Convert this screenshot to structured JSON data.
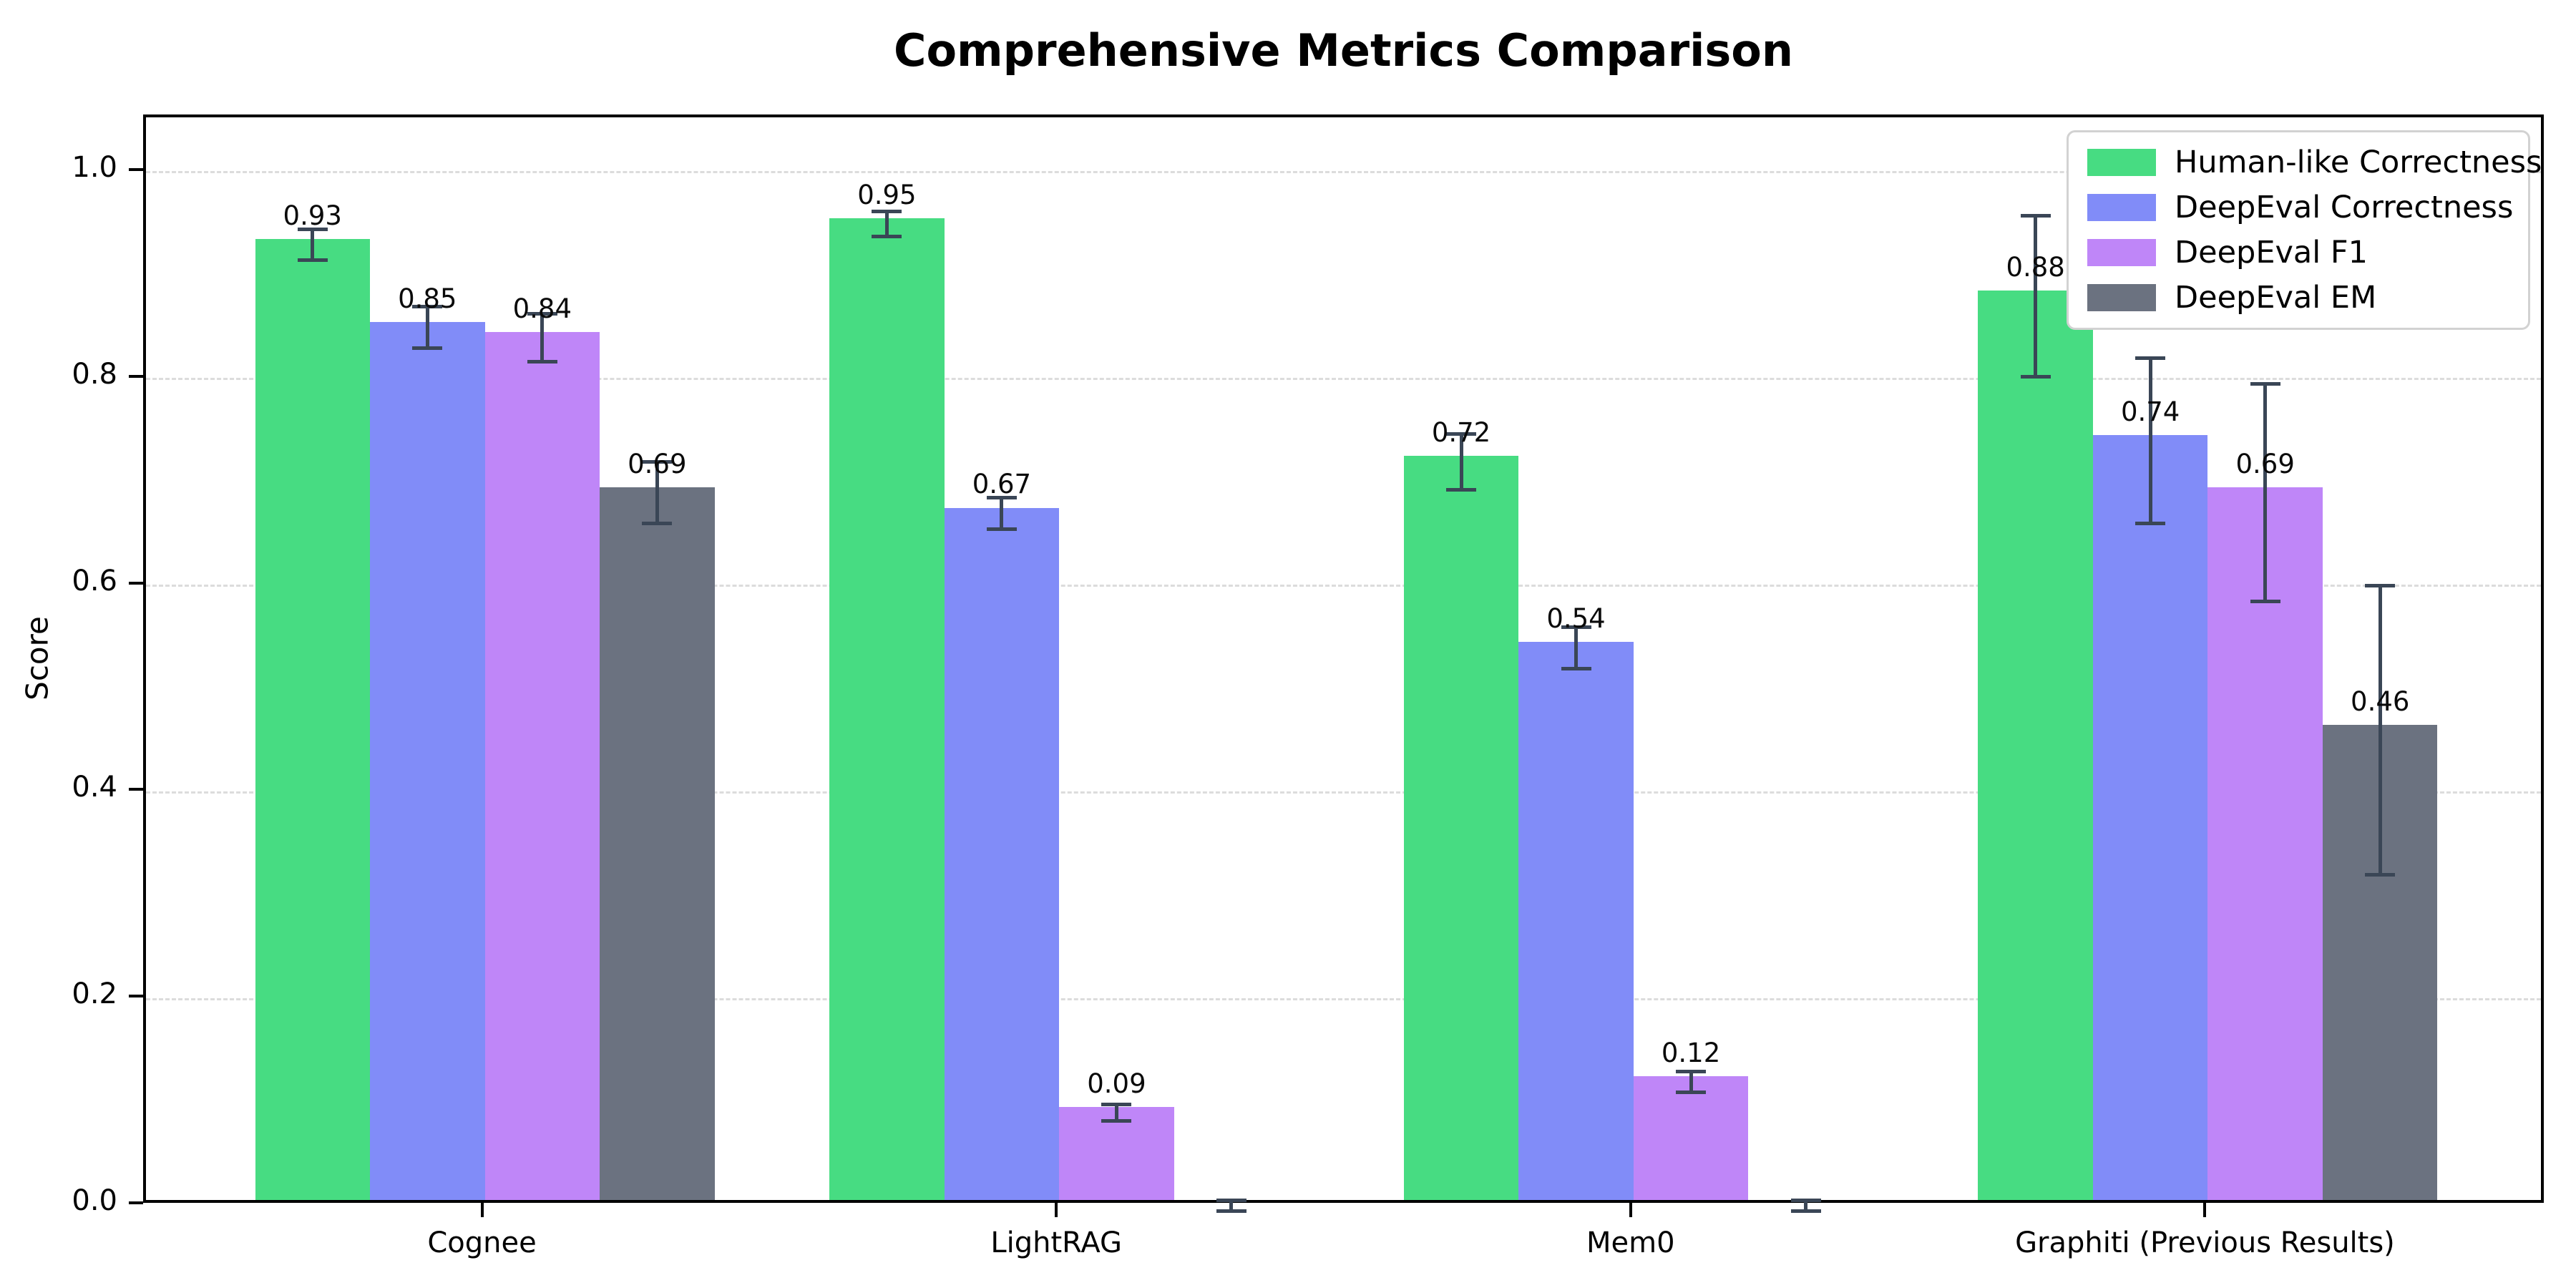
{
  "title": "Comprehensive Metrics Comparison",
  "chart_data": {
    "type": "bar",
    "title": "Comprehensive Metrics Comparison",
    "xlabel": "",
    "ylabel": "Score",
    "ylim": [
      0,
      1.05
    ],
    "yticks": [
      {
        "value": 0.0,
        "label": "0.0"
      },
      {
        "value": 0.2,
        "label": "0.2"
      },
      {
        "value": 0.4,
        "label": "0.4"
      },
      {
        "value": 0.6,
        "label": "0.6"
      },
      {
        "value": 0.8,
        "label": "0.8"
      },
      {
        "value": 1.0,
        "label": "1.0"
      }
    ],
    "grid": "horizontal-dashed",
    "grid_color": "#dcdcdc",
    "legend_position": "upper-right",
    "legend_border_color": "#d2d2d2",
    "error_bar_color": "#3a4656",
    "categories": [
      "Cognee",
      "LightRAG",
      "Mem0",
      "Graphiti (Previous Results)"
    ],
    "series": [
      {
        "name": "Human-like Correctness",
        "color": "#47dc82",
        "values": [
          0.93,
          0.95,
          0.72,
          0.88
        ],
        "errors": [
          0.015,
          0.012,
          0.027,
          0.078
        ],
        "bar_labels": [
          "0.93",
          "0.95",
          "0.72",
          "0.88"
        ]
      },
      {
        "name": "DeepEval Correctness",
        "color": "#818cf8",
        "values": [
          0.85,
          0.67,
          0.54,
          0.74
        ],
        "errors": [
          0.02,
          0.015,
          0.02,
          0.08
        ],
        "bar_labels": [
          "0.85",
          "0.67",
          "0.54",
          "0.74"
        ]
      },
      {
        "name": "DeepEval F1",
        "color": "#bf86f8",
        "values": [
          0.84,
          0.09,
          0.12,
          0.69
        ],
        "errors": [
          0.023,
          0.008,
          0.01,
          0.105
        ],
        "bar_labels": [
          "0.84",
          "0.09",
          "0.12",
          "0.69"
        ]
      },
      {
        "name": "DeepEval EM",
        "color": "#6b7280",
        "values": [
          0.69,
          0.0,
          0.0,
          0.46
        ],
        "errors": [
          0.03,
          0.005,
          0.005,
          0.14
        ],
        "bar_labels": [
          "0.69",
          "",
          "",
          "0.46"
        ]
      }
    ]
  }
}
